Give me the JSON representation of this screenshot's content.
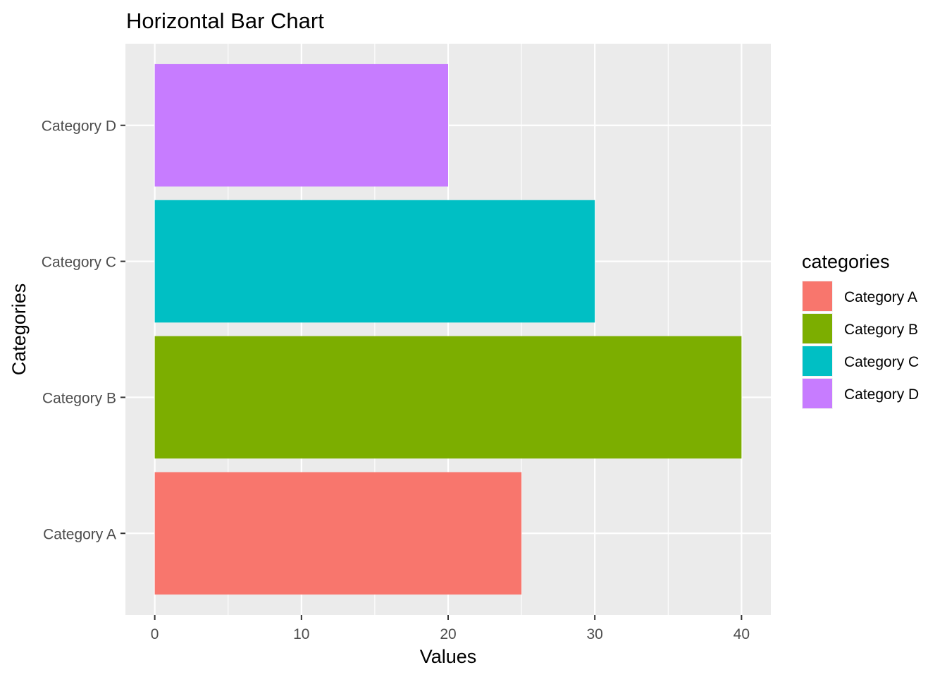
{
  "chart_data": {
    "type": "bar",
    "orientation": "horizontal",
    "title": "Horizontal Bar Chart",
    "xlabel": "Values",
    "ylabel": "Categories",
    "categories": [
      "Category A",
      "Category B",
      "Category C",
      "Category D"
    ],
    "values": [
      25,
      40,
      30,
      20
    ],
    "xlim": [
      -2,
      42
    ],
    "xticks": [
      0,
      10,
      20,
      30,
      40
    ],
    "grid": true,
    "legend": {
      "title": "categories",
      "placement": "right",
      "entries": [
        "Category A",
        "Category B",
        "Category C",
        "Category D"
      ]
    },
    "colors": [
      "#F8766D",
      "#7CAE00",
      "#00BFC4",
      "#C77CFF"
    ],
    "panel_background": "#EBEBEB",
    "grid_color": "#FFFFFF"
  }
}
